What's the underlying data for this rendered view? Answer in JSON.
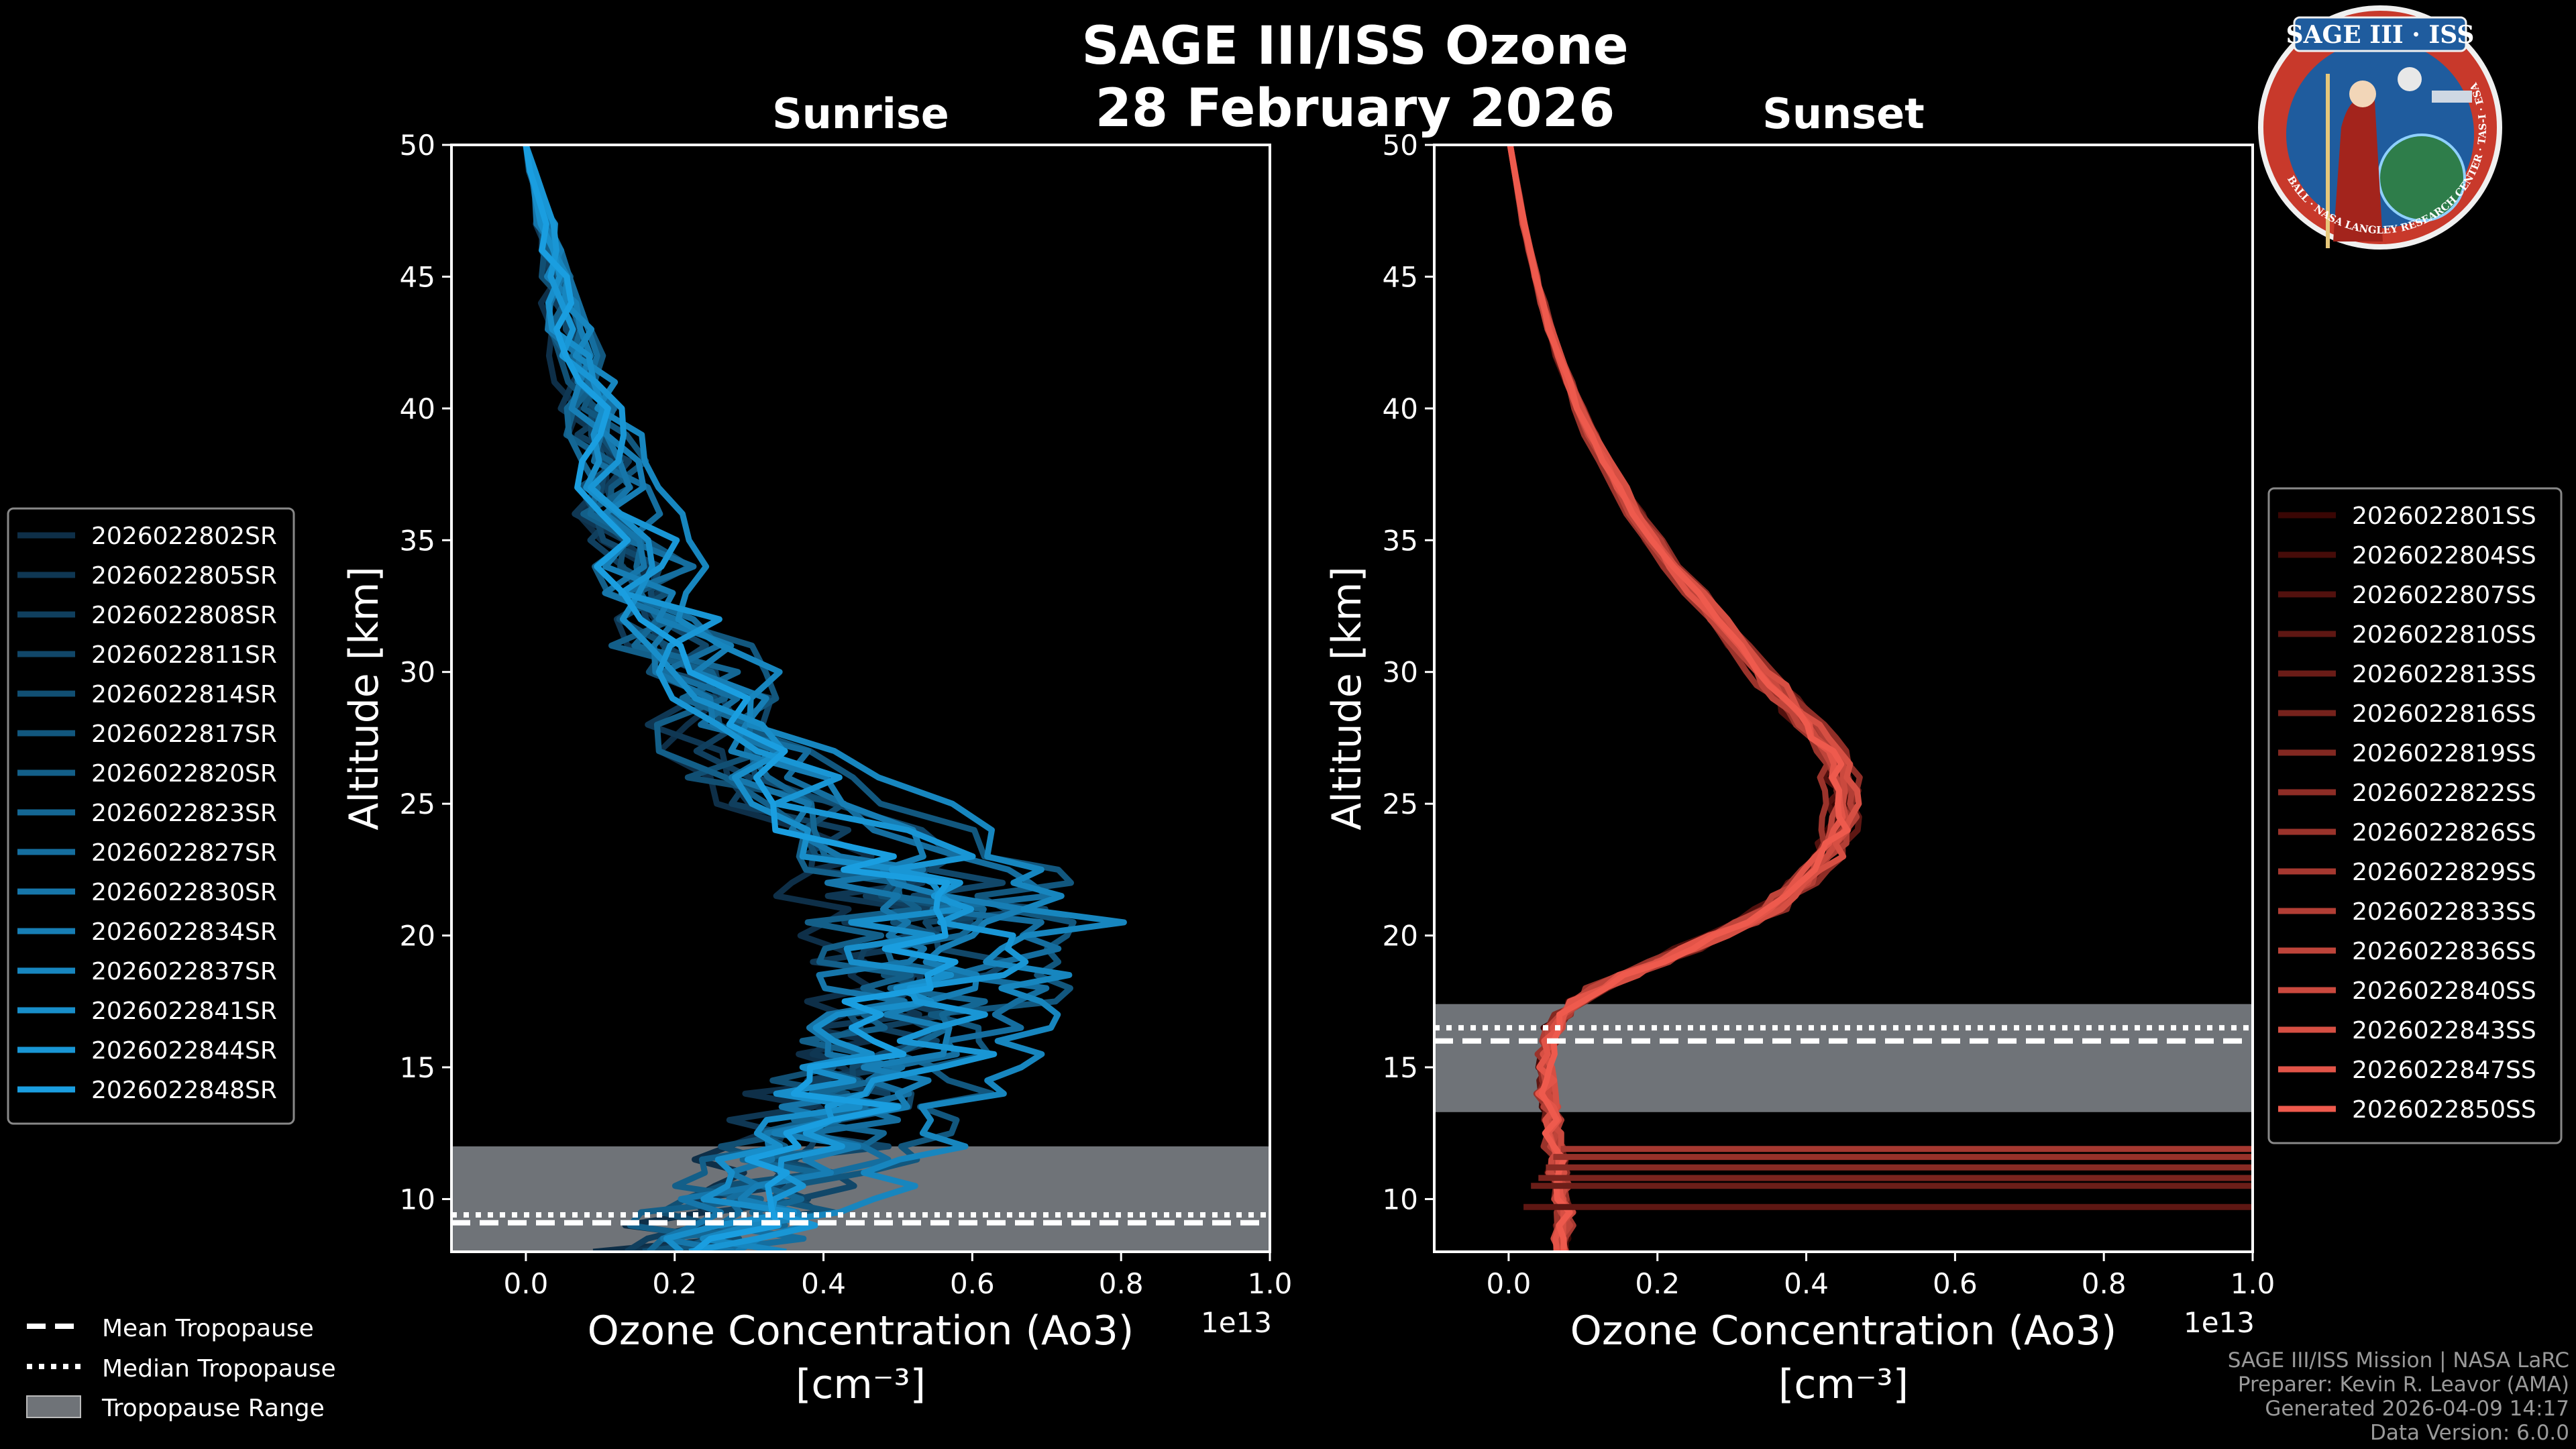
{
  "figure": {
    "title_line1": "SAGE III/ISS Ozone",
    "title_line2": "28 February 2026"
  },
  "badge": {
    "title": "SAGE III · ISS",
    "ring_text": "BALL · NASA LANGLEY RESEARCH CENTER · TAS-I · ESA",
    "colors": {
      "ring": "#c8392b",
      "inner": "#1f5c9e",
      "border": "#f0f0f0"
    }
  },
  "footer": {
    "lines": [
      "SAGE III/ISS Mission | NASA LaRC",
      "Preparer: Kevin R. Leavor (AMA)",
      "Generated 2026-04-09 14:17",
      "Data Version: 6.0.0"
    ]
  },
  "tropopause_legend": {
    "mean": "Mean Tropopause",
    "median": "Median Tropopause",
    "range": "Tropopause Range"
  },
  "chart_data": [
    {
      "type": "line",
      "title": "Sunrise",
      "xlabel": "Ozone Concentration (Ao3)",
      "xlabel_units": "[cm$^{-3}$]",
      "xlabel_units_display": "[cm⁻³]",
      "ylabel": "Altitude [km]",
      "x_scale_label": "1e13",
      "xlim": [
        -0.1,
        1.0
      ],
      "ylim": [
        8,
        50
      ],
      "x_ticks": [
        0.0,
        0.2,
        0.4,
        0.6,
        0.8,
        1.0
      ],
      "x_tick_labels": [
        "0.0",
        "0.2",
        "0.4",
        "0.6",
        "0.8",
        "1.0"
      ],
      "y_ticks": [
        10,
        15,
        20,
        25,
        30,
        35,
        40,
        45,
        50
      ],
      "tropopause": {
        "mean": 9.1,
        "median": 9.4,
        "range": [
          8.0,
          12.0
        ]
      },
      "legend_position": "left",
      "color_start": "#0e2f48",
      "color_end": "#1a9ee0",
      "series_names": [
        "2026022802SR",
        "2026022805SR",
        "2026022808SR",
        "2026022811SR",
        "2026022814SR",
        "2026022817SR",
        "2026022820SR",
        "2026022823SR",
        "2026022827SR",
        "2026022830SR",
        "2026022834SR",
        "2026022837SR",
        "2026022841SR",
        "2026022844SR",
        "2026022848SR"
      ],
      "altitudes": [
        8,
        8.5,
        9,
        9.5,
        10,
        10.5,
        11,
        11.5,
        12,
        12.5,
        13,
        13.5,
        14,
        14.5,
        15,
        15.5,
        16,
        16.5,
        17,
        17.5,
        18,
        18.5,
        19,
        19.5,
        20,
        20.5,
        21,
        21.5,
        22,
        22.5,
        23,
        24,
        25,
        26,
        27,
        28,
        29,
        30,
        31,
        32,
        33,
        34,
        35,
        36,
        37,
        38,
        39,
        40,
        41,
        42,
        43,
        44,
        45,
        46,
        47,
        48,
        49,
        50
      ],
      "base_profile": [
        0.22,
        0.24,
        0.26,
        0.28,
        0.3,
        0.32,
        0.33,
        0.35,
        0.37,
        0.38,
        0.4,
        0.41,
        0.43,
        0.44,
        0.45,
        0.46,
        0.47,
        0.48,
        0.49,
        0.5,
        0.51,
        0.52,
        0.52,
        0.53,
        0.53,
        0.53,
        0.53,
        0.52,
        0.51,
        0.49,
        0.46,
        0.41,
        0.36,
        0.32,
        0.28,
        0.25,
        0.23,
        0.21,
        0.19,
        0.17,
        0.16,
        0.14,
        0.13,
        0.12,
        0.11,
        0.1,
        0.09,
        0.085,
        0.075,
        0.065,
        0.055,
        0.045,
        0.04,
        0.032,
        0.025,
        0.016,
        0.008,
        0.0
      ],
      "profile_scale": [
        0.82,
        0.9,
        1.0,
        1.15,
        0.95,
        1.28,
        0.86,
        1.06,
        1.2,
        0.93,
        1.1,
        1.36,
        0.97,
        1.18,
        1.03
      ],
      "noise_amp": 0.09,
      "upper_spread": 0.09
    },
    {
      "type": "line",
      "title": "Sunset",
      "xlabel": "Ozone Concentration (Ao3)",
      "xlabel_units": "[cm$^{-3}$]",
      "xlabel_units_display": "[cm⁻³]",
      "ylabel": "Altitude [km]",
      "x_scale_label": "1e13",
      "xlim": [
        -0.1,
        1.0
      ],
      "ylim": [
        8,
        50
      ],
      "x_ticks": [
        0.0,
        0.2,
        0.4,
        0.6,
        0.8,
        1.0
      ],
      "x_tick_labels": [
        "0.0",
        "0.2",
        "0.4",
        "0.6",
        "0.8",
        "1.0"
      ],
      "y_ticks": [
        10,
        15,
        20,
        25,
        30,
        35,
        40,
        45,
        50
      ],
      "tropopause": {
        "mean": 16.0,
        "median": 16.5,
        "range": [
          13.3,
          17.4
        ]
      },
      "legend_position": "right",
      "color_start": "#3a0604",
      "color_end": "#ee5a4d",
      "series_names": [
        "2026022801SS",
        "2026022804SS",
        "2026022807SS",
        "2026022810SS",
        "2026022813SS",
        "2026022816SS",
        "2026022819SS",
        "2026022822SS",
        "2026022826SS",
        "2026022829SS",
        "2026022833SS",
        "2026022836SS",
        "2026022840SS",
        "2026022843SS",
        "2026022847SS",
        "2026022850SS"
      ],
      "altitudes": [
        8,
        8.5,
        9,
        9.5,
        10,
        10.5,
        11,
        11.5,
        12,
        12.5,
        13,
        13.5,
        14,
        14.5,
        15,
        15.5,
        16,
        16.5,
        17,
        17.5,
        18,
        18.5,
        19,
        19.5,
        20,
        20.5,
        21,
        21.5,
        22,
        22.5,
        23,
        23.5,
        24,
        24.5,
        25,
        25.5,
        26,
        26.5,
        27,
        27.5,
        28,
        28.5,
        29,
        29.5,
        30,
        31,
        32,
        33,
        34,
        35,
        36,
        37,
        38,
        39,
        40,
        41,
        42,
        43,
        44,
        45,
        46,
        47,
        48,
        49,
        50
      ],
      "base_profile": [
        0.07,
        0.07,
        0.075,
        0.075,
        0.07,
        0.07,
        0.065,
        0.065,
        0.06,
        0.06,
        0.058,
        0.055,
        0.05,
        0.05,
        0.05,
        0.05,
        0.055,
        0.06,
        0.07,
        0.09,
        0.12,
        0.16,
        0.2,
        0.24,
        0.28,
        0.32,
        0.35,
        0.37,
        0.39,
        0.41,
        0.425,
        0.435,
        0.445,
        0.45,
        0.452,
        0.45,
        0.445,
        0.44,
        0.43,
        0.415,
        0.4,
        0.385,
        0.37,
        0.355,
        0.34,
        0.31,
        0.28,
        0.25,
        0.22,
        0.195,
        0.17,
        0.15,
        0.13,
        0.11,
        0.095,
        0.08,
        0.067,
        0.055,
        0.045,
        0.036,
        0.028,
        0.02,
        0.014,
        0.008,
        0.002
      ],
      "profile_scale": [
        0.98,
        1.01,
        0.97,
        1.03,
        1.0,
        0.99,
        1.02,
        1.04,
        0.96,
        1.0,
        1.02,
        0.98,
        1.01,
        1.03,
        0.99,
        1.0
      ],
      "noise_amp": 0.012,
      "upper_spread": 0.01,
      "extra_horizontal_lines_km": [
        9.7,
        10.5,
        10.8,
        11.2,
        11.6,
        11.9
      ]
    }
  ]
}
